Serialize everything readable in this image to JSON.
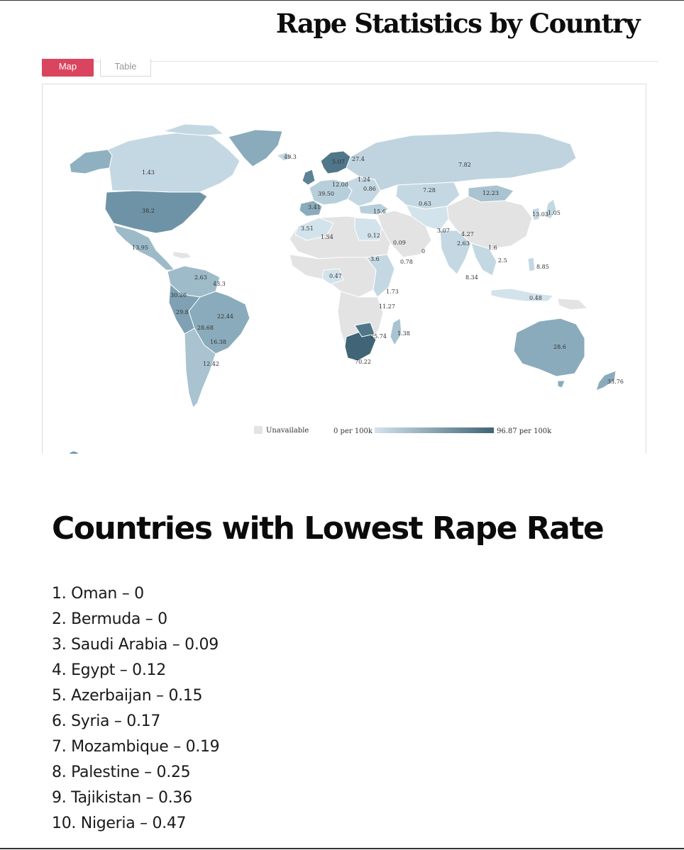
{
  "header": {
    "title": "Rape Statistics by Country"
  },
  "tabs": [
    {
      "label": "Map",
      "active": true
    },
    {
      "label": "Table",
      "active": false
    }
  ],
  "map": {
    "labels": [
      "1.43",
      "49.3",
      "5.07",
      "27.4",
      "7.82",
      "38.2",
      "12.08",
      "1.24",
      "0.86",
      "7.28",
      "12.23",
      "39.50",
      "3.41",
      "15.6",
      "0.63",
      "13.03",
      "1.05",
      "3.51",
      "1.54",
      "0.12",
      "0.09",
      "3.07",
      "4.27",
      "2.63",
      "1.6",
      "0",
      "13.95",
      "3.6",
      "0.78",
      "2.5",
      "8.85",
      "2.63",
      "43.3",
      "0.47",
      "8.34",
      "30.26",
      "1.73",
      "0.48",
      "29.8",
      "11.27",
      "22.44",
      "28.68",
      "1.38",
      "25.74",
      "16.38",
      "28.6",
      "70.22",
      "12.42",
      "33.76"
    ],
    "legend": {
      "unavailable": "Unavailable",
      "min_label": "0 per 100k",
      "max_label": "96.87 per 100k",
      "unavailable_color": "#e3e3e3",
      "min_color": "#d3e3ec",
      "max_color": "#3f6577"
    }
  },
  "lowest": {
    "title": "Countries with Lowest Rape Rate",
    "items": [
      "1. Oman – 0",
      "2. Bermuda – 0",
      "3. Saudi Arabia – 0.09",
      "4. Egypt – 0.12",
      "5. Azerbaijan – 0.15",
      "6. Syria – 0.17",
      "7. Mozambique – 0.19",
      "8. Palestine – 0.25",
      "9. Tajikistan – 0.36",
      "10. Nigeria – 0.47"
    ]
  }
}
